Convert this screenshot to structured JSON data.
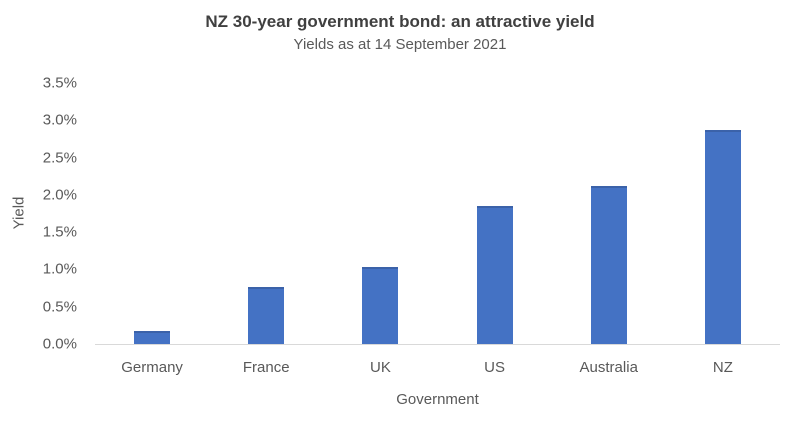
{
  "chart_data": {
    "type": "bar",
    "title": "NZ 30-year government bond: an attractive yield",
    "subtitle": "Yields as at 14 September 2021",
    "categories": [
      "Germany",
      "France",
      "UK",
      "US",
      "Australia",
      "NZ"
    ],
    "values": [
      0.17,
      0.77,
      1.03,
      1.85,
      2.12,
      2.87
    ],
    "xlabel": "Government",
    "ylabel": "Yield",
    "ylim": [
      0,
      3.5
    ],
    "ytick_step": 0.5,
    "ytick_labels": [
      "0.0%",
      "0.5%",
      "1.0%",
      "1.5%",
      "2.0%",
      "2.5%",
      "3.0%",
      "3.5%"
    ],
    "grid": false,
    "legend": null,
    "colors": {
      "bar": "#4472C4",
      "bar_edge": "#3B62A9",
      "axis_line": "#D9D9D9",
      "text": "#595959",
      "title": "#404040",
      "background": "#FFFFFF"
    }
  }
}
